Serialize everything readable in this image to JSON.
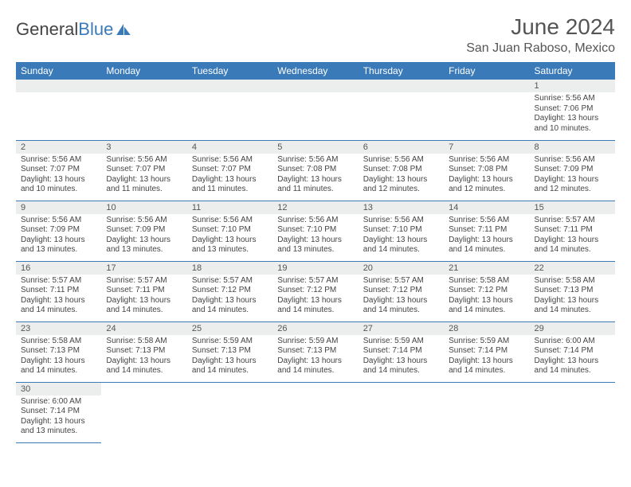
{
  "logo": {
    "text1": "General",
    "text2": "Blue"
  },
  "title": "June 2024",
  "location": "San Juan Raboso, Mexico",
  "dayHeaders": [
    "Sunday",
    "Monday",
    "Tuesday",
    "Wednesday",
    "Thursday",
    "Friday",
    "Saturday"
  ],
  "colors": {
    "header_bg": "#3a7ab8",
    "header_text": "#ffffff",
    "daynum_bg": "#eceded",
    "row_border": "#3a7ab8",
    "text": "#444444",
    "title_text": "#555555"
  },
  "calendar": {
    "leadingBlanks": 6,
    "days": [
      {
        "n": "1",
        "sunrise": "5:56 AM",
        "sunset": "7:06 PM",
        "daylight": "13 hours and 10 minutes."
      },
      {
        "n": "2",
        "sunrise": "5:56 AM",
        "sunset": "7:07 PM",
        "daylight": "13 hours and 10 minutes."
      },
      {
        "n": "3",
        "sunrise": "5:56 AM",
        "sunset": "7:07 PM",
        "daylight": "13 hours and 11 minutes."
      },
      {
        "n": "4",
        "sunrise": "5:56 AM",
        "sunset": "7:07 PM",
        "daylight": "13 hours and 11 minutes."
      },
      {
        "n": "5",
        "sunrise": "5:56 AM",
        "sunset": "7:08 PM",
        "daylight": "13 hours and 11 minutes."
      },
      {
        "n": "6",
        "sunrise": "5:56 AM",
        "sunset": "7:08 PM",
        "daylight": "13 hours and 12 minutes."
      },
      {
        "n": "7",
        "sunrise": "5:56 AM",
        "sunset": "7:08 PM",
        "daylight": "13 hours and 12 minutes."
      },
      {
        "n": "8",
        "sunrise": "5:56 AM",
        "sunset": "7:09 PM",
        "daylight": "13 hours and 12 minutes."
      },
      {
        "n": "9",
        "sunrise": "5:56 AM",
        "sunset": "7:09 PM",
        "daylight": "13 hours and 13 minutes."
      },
      {
        "n": "10",
        "sunrise": "5:56 AM",
        "sunset": "7:09 PM",
        "daylight": "13 hours and 13 minutes."
      },
      {
        "n": "11",
        "sunrise": "5:56 AM",
        "sunset": "7:10 PM",
        "daylight": "13 hours and 13 minutes."
      },
      {
        "n": "12",
        "sunrise": "5:56 AM",
        "sunset": "7:10 PM",
        "daylight": "13 hours and 13 minutes."
      },
      {
        "n": "13",
        "sunrise": "5:56 AM",
        "sunset": "7:10 PM",
        "daylight": "13 hours and 14 minutes."
      },
      {
        "n": "14",
        "sunrise": "5:56 AM",
        "sunset": "7:11 PM",
        "daylight": "13 hours and 14 minutes."
      },
      {
        "n": "15",
        "sunrise": "5:57 AM",
        "sunset": "7:11 PM",
        "daylight": "13 hours and 14 minutes."
      },
      {
        "n": "16",
        "sunrise": "5:57 AM",
        "sunset": "7:11 PM",
        "daylight": "13 hours and 14 minutes."
      },
      {
        "n": "17",
        "sunrise": "5:57 AM",
        "sunset": "7:11 PM",
        "daylight": "13 hours and 14 minutes."
      },
      {
        "n": "18",
        "sunrise": "5:57 AM",
        "sunset": "7:12 PM",
        "daylight": "13 hours and 14 minutes."
      },
      {
        "n": "19",
        "sunrise": "5:57 AM",
        "sunset": "7:12 PM",
        "daylight": "13 hours and 14 minutes."
      },
      {
        "n": "20",
        "sunrise": "5:57 AM",
        "sunset": "7:12 PM",
        "daylight": "13 hours and 14 minutes."
      },
      {
        "n": "21",
        "sunrise": "5:58 AM",
        "sunset": "7:12 PM",
        "daylight": "13 hours and 14 minutes."
      },
      {
        "n": "22",
        "sunrise": "5:58 AM",
        "sunset": "7:13 PM",
        "daylight": "13 hours and 14 minutes."
      },
      {
        "n": "23",
        "sunrise": "5:58 AM",
        "sunset": "7:13 PM",
        "daylight": "13 hours and 14 minutes."
      },
      {
        "n": "24",
        "sunrise": "5:58 AM",
        "sunset": "7:13 PM",
        "daylight": "13 hours and 14 minutes."
      },
      {
        "n": "25",
        "sunrise": "5:59 AM",
        "sunset": "7:13 PM",
        "daylight": "13 hours and 14 minutes."
      },
      {
        "n": "26",
        "sunrise": "5:59 AM",
        "sunset": "7:13 PM",
        "daylight": "13 hours and 14 minutes."
      },
      {
        "n": "27",
        "sunrise": "5:59 AM",
        "sunset": "7:14 PM",
        "daylight": "13 hours and 14 minutes."
      },
      {
        "n": "28",
        "sunrise": "5:59 AM",
        "sunset": "7:14 PM",
        "daylight": "13 hours and 14 minutes."
      },
      {
        "n": "29",
        "sunrise": "6:00 AM",
        "sunset": "7:14 PM",
        "daylight": "13 hours and 14 minutes."
      },
      {
        "n": "30",
        "sunrise": "6:00 AM",
        "sunset": "7:14 PM",
        "daylight": "13 hours and 13 minutes."
      }
    ]
  },
  "labels": {
    "sunrise": "Sunrise: ",
    "sunset": "Sunset: ",
    "daylight": "Daylight: "
  }
}
